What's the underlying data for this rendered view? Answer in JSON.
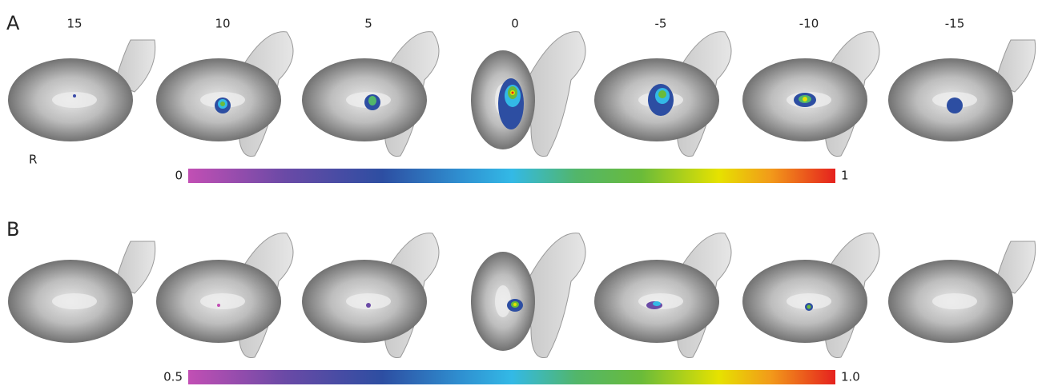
{
  "panels": [
    {
      "label": "A",
      "slice_labels": [
        "15",
        "10",
        "5",
        "0",
        "-5",
        "-10",
        "-15"
      ],
      "orientation": "R",
      "colorbar": {
        "min": "0",
        "max": "1"
      }
    },
    {
      "label": "B",
      "colorbar": {
        "min": "0.5",
        "max": "1.0"
      }
    }
  ]
}
